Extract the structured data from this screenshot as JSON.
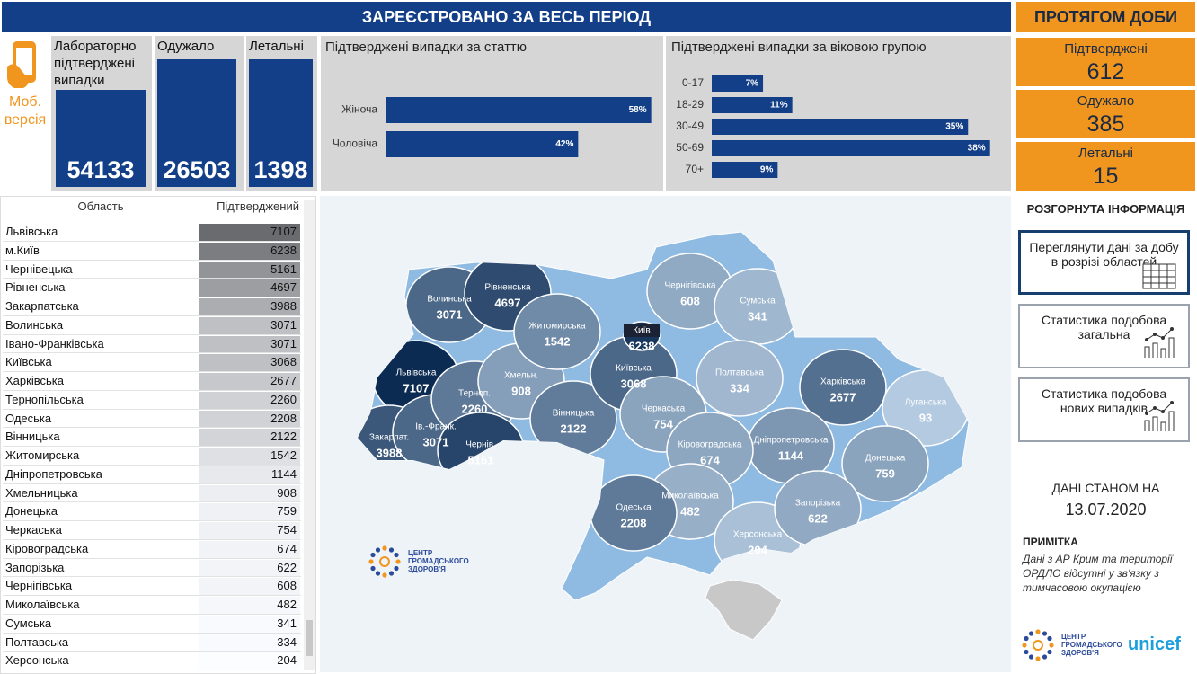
{
  "header": {
    "title": "ЗАРЕЄСТРОВАНО ЗА ВЕСЬ ПЕРІОД"
  },
  "mobile": {
    "label": "Моб. версія"
  },
  "totals": [
    {
      "label": "Лабораторно підтверджені випадки",
      "value": 54133
    },
    {
      "label": "Одужало",
      "value": 26503
    },
    {
      "label": "Летальні",
      "value": 1398
    }
  ],
  "chart_data": [
    {
      "type": "bar",
      "orientation": "horizontal",
      "title": "Підтверджені випадки за статтю",
      "categories": [
        "Жіноча",
        "Чоловіча"
      ],
      "values": [
        58,
        42
      ],
      "value_labels": [
        "58%",
        "42%"
      ],
      "color": "#123f88"
    },
    {
      "type": "bar",
      "orientation": "horizontal",
      "title": "Підтверджені випадки за віковою групою",
      "categories": [
        "0-17",
        "18-29",
        "30-49",
        "50-69",
        "70+"
      ],
      "values": [
        7,
        11,
        35,
        38,
        9
      ],
      "value_labels": [
        "7%",
        "11%",
        "35%",
        "38%",
        "9%"
      ],
      "color": "#123f88"
    }
  ],
  "table": {
    "columns": [
      "Область",
      "Підтверджений"
    ],
    "rows": [
      [
        "Львівська",
        7107
      ],
      [
        "м.Київ",
        6238
      ],
      [
        "Чернівецька",
        5161
      ],
      [
        "Рівненська",
        4697
      ],
      [
        "Закарпатська",
        3988
      ],
      [
        "Волинська",
        3071
      ],
      [
        "Івано-Франківська",
        3071
      ],
      [
        "Київська",
        3068
      ],
      [
        "Харківська",
        2677
      ],
      [
        "Тернопільська",
        2260
      ],
      [
        "Одеська",
        2208
      ],
      [
        "Вінницька",
        2122
      ],
      [
        "Житомирська",
        1542
      ],
      [
        "Дніпропетровська",
        1144
      ],
      [
        "Хмельницька",
        908
      ],
      [
        "Донецька",
        759
      ],
      [
        "Черкаська",
        754
      ],
      [
        "Кіровоградська",
        674
      ],
      [
        "Запорізька",
        622
      ],
      [
        "Чернігівська",
        608
      ],
      [
        "Миколаївська",
        482
      ],
      [
        "Сумська",
        341
      ],
      [
        "Полтавська",
        334
      ],
      [
        "Херсонська",
        204
      ]
    ]
  },
  "map": {
    "color_scale": [
      "#c9def2",
      "#0b2b52"
    ],
    "regions": [
      {
        "name": "Волинська",
        "value": 3071
      },
      {
        "name": "Рівненська",
        "value": 4697
      },
      {
        "name": "Львівська",
        "value": 7107
      },
      {
        "name": "Закарпат.",
        "value": 3988
      },
      {
        "name": "Ів.-Франк.",
        "value": 3071
      },
      {
        "name": "Терноп.",
        "value": 2260
      },
      {
        "name": "Чернів.",
        "value": 5161
      },
      {
        "name": "Хмельн.",
        "value": 908
      },
      {
        "name": "Житомирська",
        "value": 1542
      },
      {
        "name": "Вінницька",
        "value": 2122
      },
      {
        "name": "Київська",
        "value": 3068
      },
      {
        "name": "Київ",
        "value": 6238
      },
      {
        "name": "Чернігівська",
        "value": 608
      },
      {
        "name": "Сумська",
        "value": 341
      },
      {
        "name": "Полтавська",
        "value": 334
      },
      {
        "name": "Харківська",
        "value": 2677
      },
      {
        "name": "Луганська",
        "value": 93
      },
      {
        "name": "Донецька",
        "value": 759
      },
      {
        "name": "Дніпропетровська",
        "value": 1144
      },
      {
        "name": "Черкаська",
        "value": 754
      },
      {
        "name": "Кіровоградська",
        "value": 674
      },
      {
        "name": "Миколаївська",
        "value": 482
      },
      {
        "name": "Одеська",
        "value": 2208
      },
      {
        "name": "Херсонська",
        "value": 204
      },
      {
        "name": "Запорізька",
        "value": 622
      }
    ]
  },
  "daily": {
    "title": "ПРОТЯГОМ ДОБИ",
    "items": [
      {
        "label": "Підтверджені",
        "value": 612
      },
      {
        "label": "Одужало",
        "value": 385
      },
      {
        "label": "Летальні",
        "value": 15
      }
    ]
  },
  "links": {
    "title": "РОЗГОРНУТА ІНФОРМАЦІЯ",
    "buttons": [
      "Переглянути дані за добу в розрізі областей",
      "Статистика подобова загальна",
      "Статистика подобова нових випадків"
    ]
  },
  "as_of": {
    "label": "ДАНІ СТАНОМ НА",
    "date": "13.07.2020"
  },
  "note": {
    "title": "ПРИМІТКА",
    "text": "Дані з АР Крим та території ОРДЛО відсутні у зв'язку з тимчасовою окупацією"
  },
  "logos": {
    "center": [
      "ЦЕНТР",
      "ГРОМАДСЬКОГО",
      "ЗДОРОВ'Я"
    ],
    "partner": "unicef"
  }
}
